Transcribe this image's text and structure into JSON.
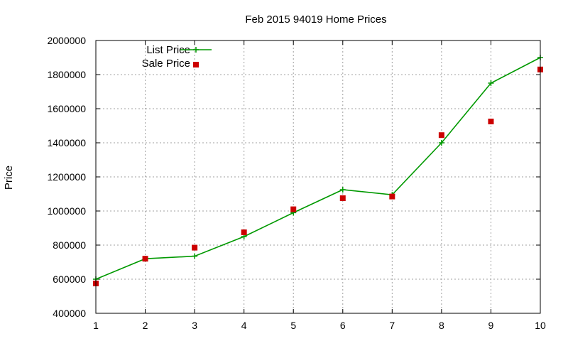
{
  "chart_data": {
    "type": "line",
    "title": "Feb 2015 94019 Home Prices",
    "xlabel": "",
    "ylabel": "Price",
    "x": [
      1,
      2,
      3,
      4,
      5,
      6,
      7,
      8,
      9,
      10
    ],
    "xlim": [
      1,
      10
    ],
    "ylim": [
      400000,
      2000000
    ],
    "xticks": [
      "1",
      "2",
      "3",
      "4",
      "5",
      "6",
      "7",
      "8",
      "9",
      "10"
    ],
    "yticks": [
      "400000",
      "600000",
      "800000",
      "1000000",
      "1200000",
      "1400000",
      "1600000",
      "1800000",
      "2000000"
    ],
    "grid": true,
    "legend_position": "top-left",
    "series": [
      {
        "name": "List Price",
        "kind": "line",
        "marker": "plus",
        "color": "#009900",
        "values": [
          600000,
          720000,
          735000,
          850000,
          990000,
          1125000,
          1095000,
          1400000,
          1750000,
          1900000
        ]
      },
      {
        "name": "Sale Price",
        "kind": "scatter",
        "marker": "square",
        "color": "#cc0000",
        "values": [
          575000,
          720000,
          785000,
          875000,
          1010000,
          1075000,
          1085000,
          1445000,
          1525000,
          1830000
        ]
      }
    ]
  }
}
